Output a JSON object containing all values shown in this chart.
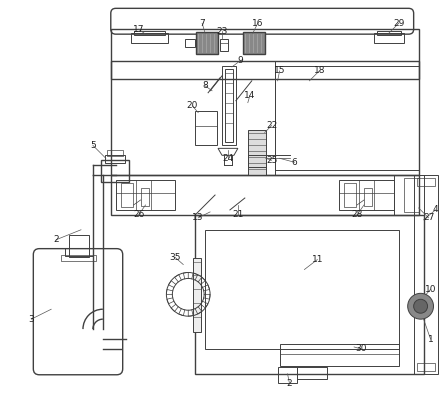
{
  "bg_color": "#ffffff",
  "line_color": "#404040",
  "dark_gray": "#666666",
  "mid_gray": "#999999",
  "light_gray": "#cccccc",
  "figsize": [
    4.44,
    3.98
  ],
  "dpi": 100
}
